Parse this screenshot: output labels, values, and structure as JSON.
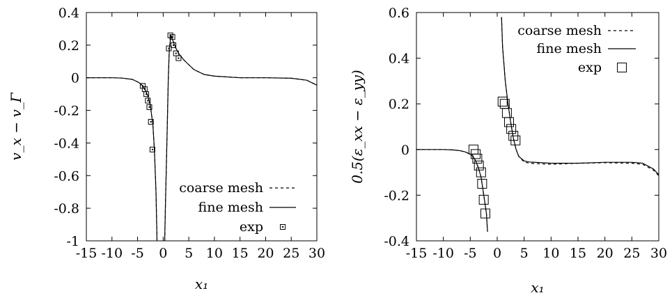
{
  "chart_data": [
    {
      "type": "line",
      "xlabel": "x₁",
      "ylabel": "v_x − v_Γ",
      "xlim": [
        -15,
        30
      ],
      "ylim": [
        -1,
        0.4
      ],
      "xticks": [
        "-15",
        "-10",
        "-5",
        "0",
        "5",
        "10",
        "15",
        "20",
        "25",
        "30"
      ],
      "yticks": [
        "-1",
        "-0.8",
        "-0.6",
        "-0.4",
        "-0.2",
        "0",
        "0.2",
        "0.4"
      ],
      "legend_position": "bottom-right",
      "grid": false,
      "series": [
        {
          "name": "coarse mesh",
          "style": "dashed",
          "segments": [
            [
              [
                -15,
                0
              ],
              [
                -10,
                0
              ],
              [
                -8,
                -0.002
              ],
              [
                -6,
                -0.01
              ],
              [
                -5,
                -0.025
              ],
              [
                -4.5,
                -0.035
              ],
              [
                -4,
                -0.05
              ],
              [
                -3.5,
                -0.075
              ],
              [
                -3,
                -0.11
              ],
              [
                -2.5,
                -0.17
              ],
              [
                -2,
                -0.29
              ],
              [
                -1.7,
                -0.45
              ],
              [
                -1.4,
                -0.7
              ],
              [
                -1.2,
                -1.0
              ]
            ],
            [
              [
                0.3,
                -1.0
              ],
              [
                0.5,
                -0.7
              ],
              [
                0.8,
                -0.3
              ],
              [
                1.0,
                0
              ],
              [
                1.2,
                0.18
              ],
              [
                1.5,
                0.26
              ],
              [
                2,
                0.22
              ],
              [
                2.5,
                0.18
              ],
              [
                3,
                0.15
              ],
              [
                4,
                0.11
              ],
              [
                5,
                0.08
              ],
              [
                6,
                0.05
              ],
              [
                8,
                0.02
              ],
              [
                10,
                0.01
              ],
              [
                15,
                0
              ],
              [
                20,
                0
              ],
              [
                25,
                -0.003
              ],
              [
                28,
                -0.015
              ],
              [
                30,
                -0.045
              ]
            ]
          ]
        },
        {
          "name": "fine mesh",
          "style": "solid",
          "segments": [
            [
              [
                -15,
                0
              ],
              [
                -10,
                0
              ],
              [
                -8,
                -0.002
              ],
              [
                -6,
                -0.01
              ],
              [
                -5,
                -0.025
              ],
              [
                -4.5,
                -0.035
              ],
              [
                -4,
                -0.05
              ],
              [
                -3.5,
                -0.075
              ],
              [
                -3,
                -0.11
              ],
              [
                -2.5,
                -0.17
              ],
              [
                -2,
                -0.29
              ],
              [
                -1.7,
                -0.45
              ],
              [
                -1.4,
                -0.7
              ],
              [
                -1.2,
                -1.0
              ]
            ],
            [
              [
                0.3,
                -1.0
              ],
              [
                0.5,
                -0.7
              ],
              [
                0.8,
                -0.3
              ],
              [
                1.0,
                0
              ],
              [
                1.2,
                0.18
              ],
              [
                1.5,
                0.26
              ],
              [
                2,
                0.22
              ],
              [
                2.5,
                0.18
              ],
              [
                3,
                0.15
              ],
              [
                4,
                0.11
              ],
              [
                5,
                0.08
              ],
              [
                6,
                0.05
              ],
              [
                8,
                0.02
              ],
              [
                10,
                0.01
              ],
              [
                15,
                0
              ],
              [
                20,
                0
              ],
              [
                25,
                -0.003
              ],
              [
                28,
                -0.015
              ],
              [
                30,
                -0.045
              ]
            ]
          ]
        },
        {
          "name": "exp",
          "style": "markers",
          "points": [
            [
              -4.0,
              -0.05
            ],
            [
              -3.6,
              -0.07
            ],
            [
              -3.3,
              -0.1
            ],
            [
              -3.0,
              -0.14
            ],
            [
              -2.7,
              -0.18
            ],
            [
              -2.4,
              -0.27
            ],
            [
              -2.1,
              -0.44
            ],
            [
              1.1,
              0.18
            ],
            [
              1.4,
              0.26
            ],
            [
              1.8,
              0.25
            ],
            [
              2.0,
              0.2
            ],
            [
              2.5,
              0.15
            ],
            [
              3.0,
              0.12
            ]
          ]
        }
      ]
    },
    {
      "type": "line",
      "xlabel": "x₁",
      "ylabel": "0.5(ε_xx − ε_yy)",
      "xlim": [
        -15,
        30
      ],
      "ylim": [
        -0.4,
        0.6
      ],
      "xticks": [
        "-15",
        "-10",
        "-5",
        "0",
        "5",
        "10",
        "15",
        "20",
        "25",
        "30"
      ],
      "yticks": [
        "-0.4",
        "-0.2",
        "0",
        "0.2",
        "0.4",
        "0.6"
      ],
      "legend_position": "top-right",
      "grid": false,
      "series": [
        {
          "name": "coarse mesh",
          "style": "dashed",
          "segments": [
            [
              [
                -15,
                0
              ],
              [
                -10,
                0
              ],
              [
                -8,
                -0.002
              ],
              [
                -7,
                -0.005
              ],
              [
                -6,
                -0.01
              ],
              [
                -5,
                -0.02
              ],
              [
                -4.5,
                -0.03
              ],
              [
                -4,
                -0.05
              ],
              [
                -3.5,
                -0.08
              ],
              [
                -3,
                -0.12
              ],
              [
                -2.5,
                -0.2
              ],
              [
                -2,
                -0.28
              ],
              [
                -1.8,
                -0.36
              ]
            ],
            [
              [
                0.8,
                0.58
              ],
              [
                1,
                0.45
              ],
              [
                1.5,
                0.3
              ],
              [
                2,
                0.2
              ],
              [
                2.5,
                0.12
              ],
              [
                3,
                0.05
              ],
              [
                3.5,
                0
              ],
              [
                4,
                -0.03
              ],
              [
                5,
                -0.055
              ],
              [
                6,
                -0.06
              ],
              [
                10,
                -0.065
              ],
              [
                15,
                -0.06
              ],
              [
                20,
                -0.058
              ],
              [
                25,
                -0.06
              ],
              [
                27,
                -0.065
              ],
              [
                29,
                -0.09
              ],
              [
                30,
                -0.115
              ]
            ]
          ]
        },
        {
          "name": "fine mesh",
          "style": "solid",
          "segments": [
            [
              [
                -15,
                0
              ],
              [
                -10,
                0
              ],
              [
                -8,
                -0.002
              ],
              [
                -7,
                -0.005
              ],
              [
                -6,
                -0.01
              ],
              [
                -5,
                -0.02
              ],
              [
                -4.5,
                -0.03
              ],
              [
                -4,
                -0.05
              ],
              [
                -3.5,
                -0.08
              ],
              [
                -3,
                -0.12
              ],
              [
                -2.5,
                -0.2
              ],
              [
                -2,
                -0.28
              ],
              [
                -1.8,
                -0.36
              ]
            ],
            [
              [
                0.8,
                0.58
              ],
              [
                1,
                0.45
              ],
              [
                1.5,
                0.3
              ],
              [
                2,
                0.2
              ],
              [
                2.5,
                0.12
              ],
              [
                3,
                0.05
              ],
              [
                3.5,
                0
              ],
              [
                4,
                -0.03
              ],
              [
                5,
                -0.05
              ],
              [
                6,
                -0.055
              ],
              [
                10,
                -0.06
              ],
              [
                15,
                -0.06
              ],
              [
                20,
                -0.056
              ],
              [
                25,
                -0.056
              ],
              [
                27,
                -0.06
              ],
              [
                29,
                -0.085
              ],
              [
                30,
                -0.11
              ]
            ]
          ]
        },
        {
          "name": "exp",
          "style": "markers",
          "points": [
            [
              -4.4,
              0.0
            ],
            [
              -4.0,
              -0.02
            ],
            [
              -3.7,
              -0.04
            ],
            [
              -3.4,
              -0.07
            ],
            [
              -3.0,
              -0.1
            ],
            [
              -2.8,
              -0.15
            ],
            [
              -2.5,
              -0.22
            ],
            [
              -2.2,
              -0.28
            ],
            [
              1.0,
              0.21
            ],
            [
              1.4,
              0.2
            ],
            [
              1.8,
              0.16
            ],
            [
              2.2,
              0.12
            ],
            [
              2.6,
              0.09
            ],
            [
              3.0,
              0.06
            ],
            [
              3.4,
              0.04
            ]
          ]
        }
      ]
    }
  ]
}
